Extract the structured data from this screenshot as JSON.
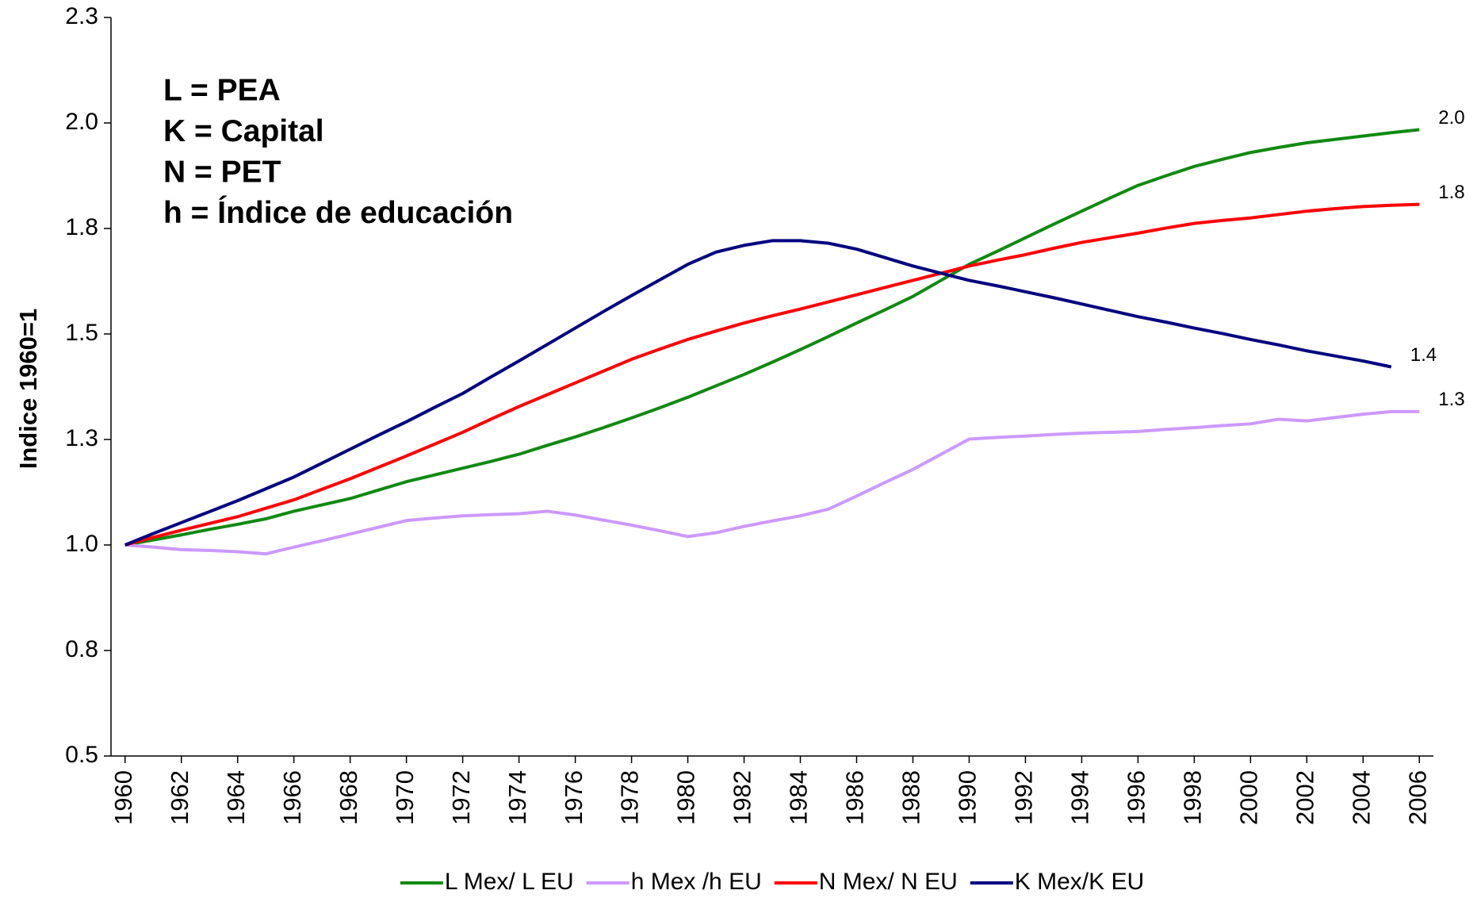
{
  "chart_data": {
    "type": "line",
    "y_label": "Indice 1960=1",
    "annotations": [
      {
        "text": "L = PEA",
        "color": "#108a10"
      },
      {
        "text": "K = Capital",
        "color": "#1a5aa8"
      },
      {
        "text": "N = PET",
        "color": "#ff0000"
      },
      {
        "text": "h = Índice de educación",
        "color": "#cc99ff"
      }
    ],
    "x": [
      1960,
      1961,
      1962,
      1963,
      1964,
      1965,
      1966,
      1967,
      1968,
      1969,
      1970,
      1971,
      1972,
      1973,
      1974,
      1975,
      1976,
      1977,
      1978,
      1979,
      1980,
      1981,
      1982,
      1983,
      1984,
      1985,
      1986,
      1987,
      1988,
      1989,
      1990,
      1991,
      1992,
      1993,
      1994,
      1995,
      1996,
      1997,
      1998,
      1999,
      2000,
      2001,
      2002,
      2003,
      2004,
      2005,
      2006
    ],
    "xlim": [
      1959.5,
      2006.5
    ],
    "xticks": [
      1960,
      1962,
      1964,
      1966,
      1968,
      1970,
      1972,
      1974,
      1976,
      1978,
      1980,
      1982,
      1984,
      1986,
      1988,
      1990,
      1992,
      1994,
      1996,
      1998,
      2000,
      2002,
      2004,
      2006
    ],
    "ylim": [
      0.5,
      2.25
    ],
    "yticks": [
      0.5,
      {
        "value": 0.75,
        "label": "0.8"
      },
      {
        "value": 1.0,
        "label": "1.0"
      },
      {
        "value": 1.25,
        "label": "1.3"
      },
      1.5,
      {
        "value": 1.75,
        "label": "1.8"
      },
      {
        "value": 2.0,
        "label": "2.0"
      },
      {
        "value": 2.25,
        "label": "2.3"
      }
    ],
    "series": [
      {
        "name": "L Mex/ L EU",
        "color": "#108a10",
        "values": [
          1.0,
          1.012,
          1.024,
          1.037,
          1.049,
          1.062,
          1.08,
          1.095,
          1.11,
          1.13,
          1.15,
          1.166,
          1.182,
          1.198,
          1.215,
          1.236,
          1.256,
          1.278,
          1.301,
          1.325,
          1.35,
          1.377,
          1.404,
          1.433,
          1.463,
          1.494,
          1.526,
          1.557,
          1.589,
          1.627,
          1.665,
          1.696,
          1.728,
          1.76,
          1.791,
          1.822,
          1.852,
          1.875,
          1.897,
          1.914,
          1.93,
          1.942,
          1.953,
          1.961,
          1.969,
          1.977,
          1.984
        ],
        "value_labels": [
          null,
          null,
          null,
          null,
          null,
          null,
          null,
          null,
          null,
          null,
          null,
          null,
          null,
          null,
          null,
          null,
          null,
          null,
          null,
          null,
          null,
          null,
          null,
          null,
          null,
          null,
          null,
          null,
          null,
          null,
          null,
          null,
          null,
          null,
          null,
          null,
          null,
          null,
          null,
          null,
          null,
          null,
          null,
          null,
          null,
          null,
          "2.0"
        ]
      },
      {
        "name": "h Mex /h EU",
        "color": "#cc99ff",
        "values": [
          1.0,
          0.995,
          0.989,
          0.987,
          0.984,
          0.979,
          0.995,
          1.01,
          1.026,
          1.042,
          1.058,
          1.064,
          1.069,
          1.072,
          1.074,
          1.08,
          1.071,
          1.059,
          1.047,
          1.034,
          1.02,
          1.029,
          1.044,
          1.057,
          1.069,
          1.085,
          1.116,
          1.148,
          1.179,
          1.215,
          1.251,
          1.255,
          1.258,
          1.262,
          1.265,
          1.267,
          1.269,
          1.274,
          1.278,
          1.283,
          1.287,
          1.298,
          1.294,
          1.302,
          1.31,
          1.316,
          1.316
        ],
        "value_labels": [
          null,
          null,
          null,
          null,
          null,
          null,
          null,
          null,
          null,
          null,
          null,
          null,
          null,
          null,
          null,
          null,
          null,
          null,
          null,
          null,
          null,
          null,
          null,
          null,
          null,
          null,
          null,
          null,
          null,
          null,
          null,
          null,
          null,
          null,
          null,
          null,
          null,
          null,
          null,
          null,
          null,
          null,
          null,
          null,
          null,
          null,
          "1.3"
        ]
      },
      {
        "name": "N Mex/ N EU",
        "color": "#ff0000",
        "values": [
          1.0,
          1.018,
          1.035,
          1.051,
          1.067,
          1.087,
          1.107,
          1.132,
          1.157,
          1.184,
          1.211,
          1.239,
          1.267,
          1.298,
          1.328,
          1.356,
          1.384,
          1.412,
          1.44,
          1.464,
          1.487,
          1.507,
          1.526,
          1.543,
          1.559,
          1.576,
          1.593,
          1.61,
          1.627,
          1.644,
          1.661,
          1.675,
          1.688,
          1.703,
          1.717,
          1.728,
          1.739,
          1.751,
          1.762,
          1.769,
          1.775,
          1.783,
          1.791,
          1.797,
          1.802,
          1.805,
          1.807
        ],
        "value_labels": [
          null,
          null,
          null,
          null,
          null,
          null,
          null,
          null,
          null,
          null,
          null,
          null,
          null,
          null,
          null,
          null,
          null,
          null,
          null,
          null,
          null,
          null,
          null,
          null,
          null,
          null,
          null,
          null,
          null,
          null,
          null,
          null,
          null,
          null,
          null,
          null,
          null,
          null,
          null,
          null,
          null,
          null,
          null,
          null,
          null,
          null,
          "1.8"
        ]
      },
      {
        "name": "K Mex/K EU",
        "color": "#000080",
        "values": [
          1.0,
          1.027,
          1.053,
          1.079,
          1.105,
          1.133,
          1.161,
          1.194,
          1.227,
          1.26,
          1.292,
          1.326,
          1.359,
          1.398,
          1.436,
          1.475,
          1.514,
          1.553,
          1.591,
          1.628,
          1.665,
          1.694,
          1.71,
          1.721,
          1.721,
          1.715,
          1.701,
          1.681,
          1.661,
          1.644,
          1.627,
          1.614,
          1.6,
          1.586,
          1.571,
          1.556,
          1.541,
          1.528,
          1.514,
          1.501,
          1.487,
          1.474,
          1.46,
          1.448,
          1.436,
          1.422,
          null
        ],
        "value_labels": [
          null,
          null,
          null,
          null,
          null,
          null,
          null,
          null,
          null,
          null,
          null,
          null,
          null,
          null,
          null,
          null,
          null,
          null,
          null,
          null,
          null,
          null,
          null,
          null,
          null,
          null,
          null,
          null,
          null,
          null,
          null,
          null,
          null,
          null,
          null,
          null,
          null,
          null,
          null,
          null,
          null,
          null,
          null,
          null,
          null,
          "1.4",
          null
        ]
      }
    ]
  }
}
